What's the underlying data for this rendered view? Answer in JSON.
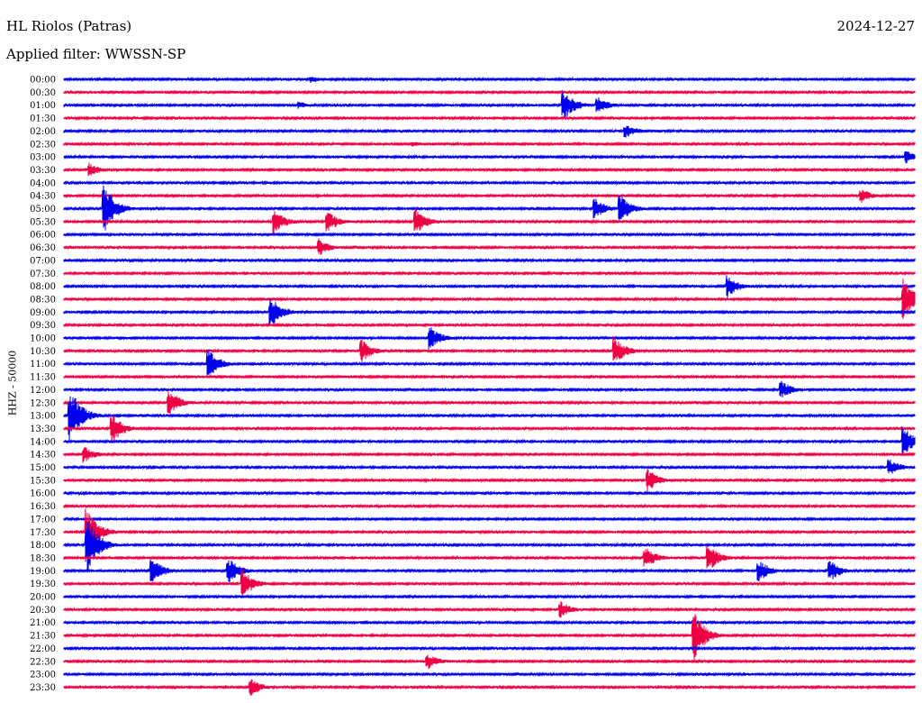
{
  "header": {
    "station": "HL Riolos (Patras)",
    "date": "2024-12-27",
    "filter": "Applied filter: WWSSN-SP"
  },
  "colors": {
    "trace_a": "#0000ee",
    "trace_b": "#ee0044"
  },
  "chart_data": {
    "type": "line",
    "subtype": "helicorder",
    "ylabel": "HHZ - 50000",
    "rows": [
      "00:00",
      "00:30",
      "01:00",
      "01:30",
      "02:00",
      "02:30",
      "03:00",
      "03:30",
      "04:00",
      "04:30",
      "05:00",
      "05:30",
      "06:00",
      "06:30",
      "07:00",
      "07:30",
      "08:00",
      "08:30",
      "09:00",
      "09:30",
      "10:00",
      "10:30",
      "11:00",
      "11:30",
      "12:00",
      "12:30",
      "13:00",
      "13:30",
      "14:00",
      "14:30",
      "15:00",
      "15:30",
      "16:00",
      "16:30",
      "17:00",
      "17:30",
      "18:00",
      "18:30",
      "19:00",
      "19:30",
      "20:00",
      "20:30",
      "21:00",
      "21:30",
      "22:00",
      "22:30",
      "23:00",
      "23:30"
    ],
    "row_minutes": 30,
    "series_colors": [
      "#0000ee",
      "#ee0044"
    ],
    "events": [
      {
        "row": "00:00",
        "minute": 8.7,
        "amp": 0.5
      },
      {
        "row": "01:00",
        "minute": 8.3,
        "amp": 0.5
      },
      {
        "row": "01:00",
        "minute": 17.6,
        "amp": 2.2
      },
      {
        "row": "01:00",
        "minute": 18.8,
        "amp": 1.2
      },
      {
        "row": "02:00",
        "minute": 19.8,
        "amp": 1.0
      },
      {
        "row": "02:30",
        "minute": 12.3,
        "amp": 0.4
      },
      {
        "row": "03:00",
        "minute": 29.7,
        "amp": 1.0
      },
      {
        "row": "03:30",
        "minute": 0.9,
        "amp": 1.0
      },
      {
        "row": "04:30",
        "minute": 28.1,
        "amp": 1.0
      },
      {
        "row": "05:00",
        "minute": 1.4,
        "amp": 3.5
      },
      {
        "row": "05:00",
        "minute": 18.7,
        "amp": 1.5
      },
      {
        "row": "05:00",
        "minute": 19.6,
        "amp": 2.0
      },
      {
        "row": "05:30",
        "minute": 7.4,
        "amp": 1.8
      },
      {
        "row": "05:30",
        "minute": 9.3,
        "amp": 1.5
      },
      {
        "row": "05:30",
        "minute": 12.4,
        "amp": 1.8
      },
      {
        "row": "06:30",
        "minute": 9.0,
        "amp": 1.2
      },
      {
        "row": "08:00",
        "minute": 23.4,
        "amp": 1.5
      },
      {
        "row": "08:30",
        "minute": 29.6,
        "amp": 3.0
      },
      {
        "row": "09:00",
        "minute": 7.3,
        "amp": 2.0
      },
      {
        "row": "10:00",
        "minute": 12.9,
        "amp": 1.6
      },
      {
        "row": "10:30",
        "minute": 10.5,
        "amp": 1.5
      },
      {
        "row": "10:30",
        "minute": 19.4,
        "amp": 2.0
      },
      {
        "row": "11:00",
        "minute": 5.1,
        "amp": 2.0
      },
      {
        "row": "12:00",
        "minute": 25.3,
        "amp": 1.2
      },
      {
        "row": "12:30",
        "minute": 3.7,
        "amp": 1.8
      },
      {
        "row": "13:00",
        "minute": 0.2,
        "amp": 4.0
      },
      {
        "row": "13:30",
        "minute": 1.7,
        "amp": 2.0
      },
      {
        "row": "14:00",
        "minute": 29.6,
        "amp": 2.0
      },
      {
        "row": "14:30",
        "minute": 0.7,
        "amp": 1.2
      },
      {
        "row": "15:00",
        "minute": 29.1,
        "amp": 1.2
      },
      {
        "row": "15:30",
        "minute": 20.6,
        "amp": 1.5
      },
      {
        "row": "17:30",
        "minute": 0.8,
        "amp": 3.5
      },
      {
        "row": "18:00",
        "minute": 0.8,
        "amp": 4.0
      },
      {
        "row": "18:30",
        "minute": 20.5,
        "amp": 1.5
      },
      {
        "row": "18:30",
        "minute": 22.7,
        "amp": 2.0
      },
      {
        "row": "19:00",
        "minute": 3.1,
        "amp": 1.8
      },
      {
        "row": "19:00",
        "minute": 5.8,
        "amp": 1.8
      },
      {
        "row": "19:00",
        "minute": 24.5,
        "amp": 1.5
      },
      {
        "row": "19:00",
        "minute": 27.0,
        "amp": 1.5
      },
      {
        "row": "19:30",
        "minute": 6.3,
        "amp": 2.0
      },
      {
        "row": "20:30",
        "minute": 17.5,
        "amp": 1.2
      },
      {
        "row": "21:30",
        "minute": 22.2,
        "amp": 3.5
      },
      {
        "row": "22:30",
        "minute": 12.8,
        "amp": 1.2
      },
      {
        "row": "23:30",
        "minute": 6.6,
        "amp": 1.2
      }
    ]
  }
}
